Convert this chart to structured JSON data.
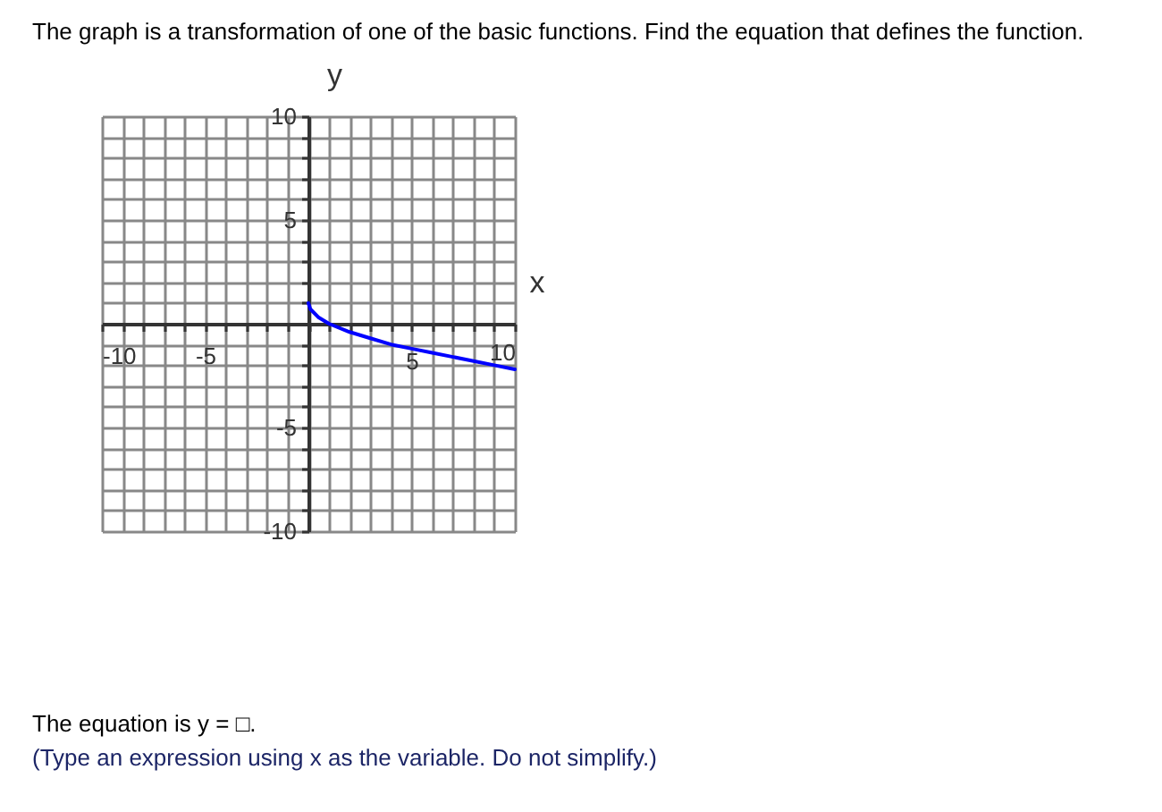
{
  "chart_data": {
    "type": "line",
    "title": "The graph is a transformation of one of the basic functions. Find the equation that defines the function.",
    "xlabel": "x",
    "ylabel": "y",
    "annotations": [
      "The equation is y = □.",
      "(Type an expression using x as the variable. Do not simplify.)"
    ],
    "x": [
      0,
      0.1,
      0.5,
      1,
      2,
      3,
      4,
      5,
      6,
      7,
      8,
      9,
      10
    ],
    "series": [
      {
        "color": "#0000ff",
        "values": [
          1,
          0.7,
          0.3,
          0,
          -0.4,
          -0.7,
          -1,
          -1.2,
          -1.4,
          -1.6,
          -1.8,
          -2,
          -2.2
        ]
      }
    ],
    "xlim": [
      -10,
      10
    ],
    "ylim": [
      -10,
      10
    ],
    "xticks": [
      -10,
      {
        "value": -9,
        "label": null
      },
      {
        "value": -8,
        "label": null
      },
      {
        "value": -7,
        "label": null
      },
      {
        "value": -6,
        "label": null
      },
      -5,
      {
        "value": -4,
        "label": null
      },
      {
        "value": -3,
        "label": null
      },
      {
        "value": -2,
        "label": null
      },
      {
        "value": -1,
        "label": null
      },
      {
        "value": 0,
        "label": null
      },
      {
        "value": 1,
        "label": null
      },
      {
        "value": 2,
        "label": null
      },
      {
        "value": 3,
        "label": null
      },
      {
        "value": 4,
        "label": null
      },
      5,
      {
        "value": 6,
        "label": null
      },
      {
        "value": 7,
        "label": null
      },
      {
        "value": 8,
        "label": null
      },
      {
        "value": 9,
        "label": null
      },
      10
    ],
    "yticks": [
      -10,
      {
        "value": -9,
        "label": null
      },
      {
        "value": -8,
        "label": null
      },
      {
        "value": -7,
        "label": null
      },
      {
        "value": -6,
        "label": null
      },
      -5,
      {
        "value": -4,
        "label": null
      },
      {
        "value": -3,
        "label": null
      },
      {
        "value": -2,
        "label": null
      },
      {
        "value": -1,
        "label": null
      },
      {
        "value": 0,
        "label": null
      },
      {
        "value": 1,
        "label": null
      },
      {
        "value": 2,
        "label": null
      },
      {
        "value": 3,
        "label": null
      },
      {
        "value": 4,
        "label": null
      },
      5,
      {
        "value": 6,
        "label": null
      },
      {
        "value": 7,
        "label": null
      },
      {
        "value": 8,
        "label": null
      },
      {
        "value": 9,
        "label": null
      },
      10
    ],
    "grid": true,
    "line_style": "solid",
    "marker": "none"
  }
}
